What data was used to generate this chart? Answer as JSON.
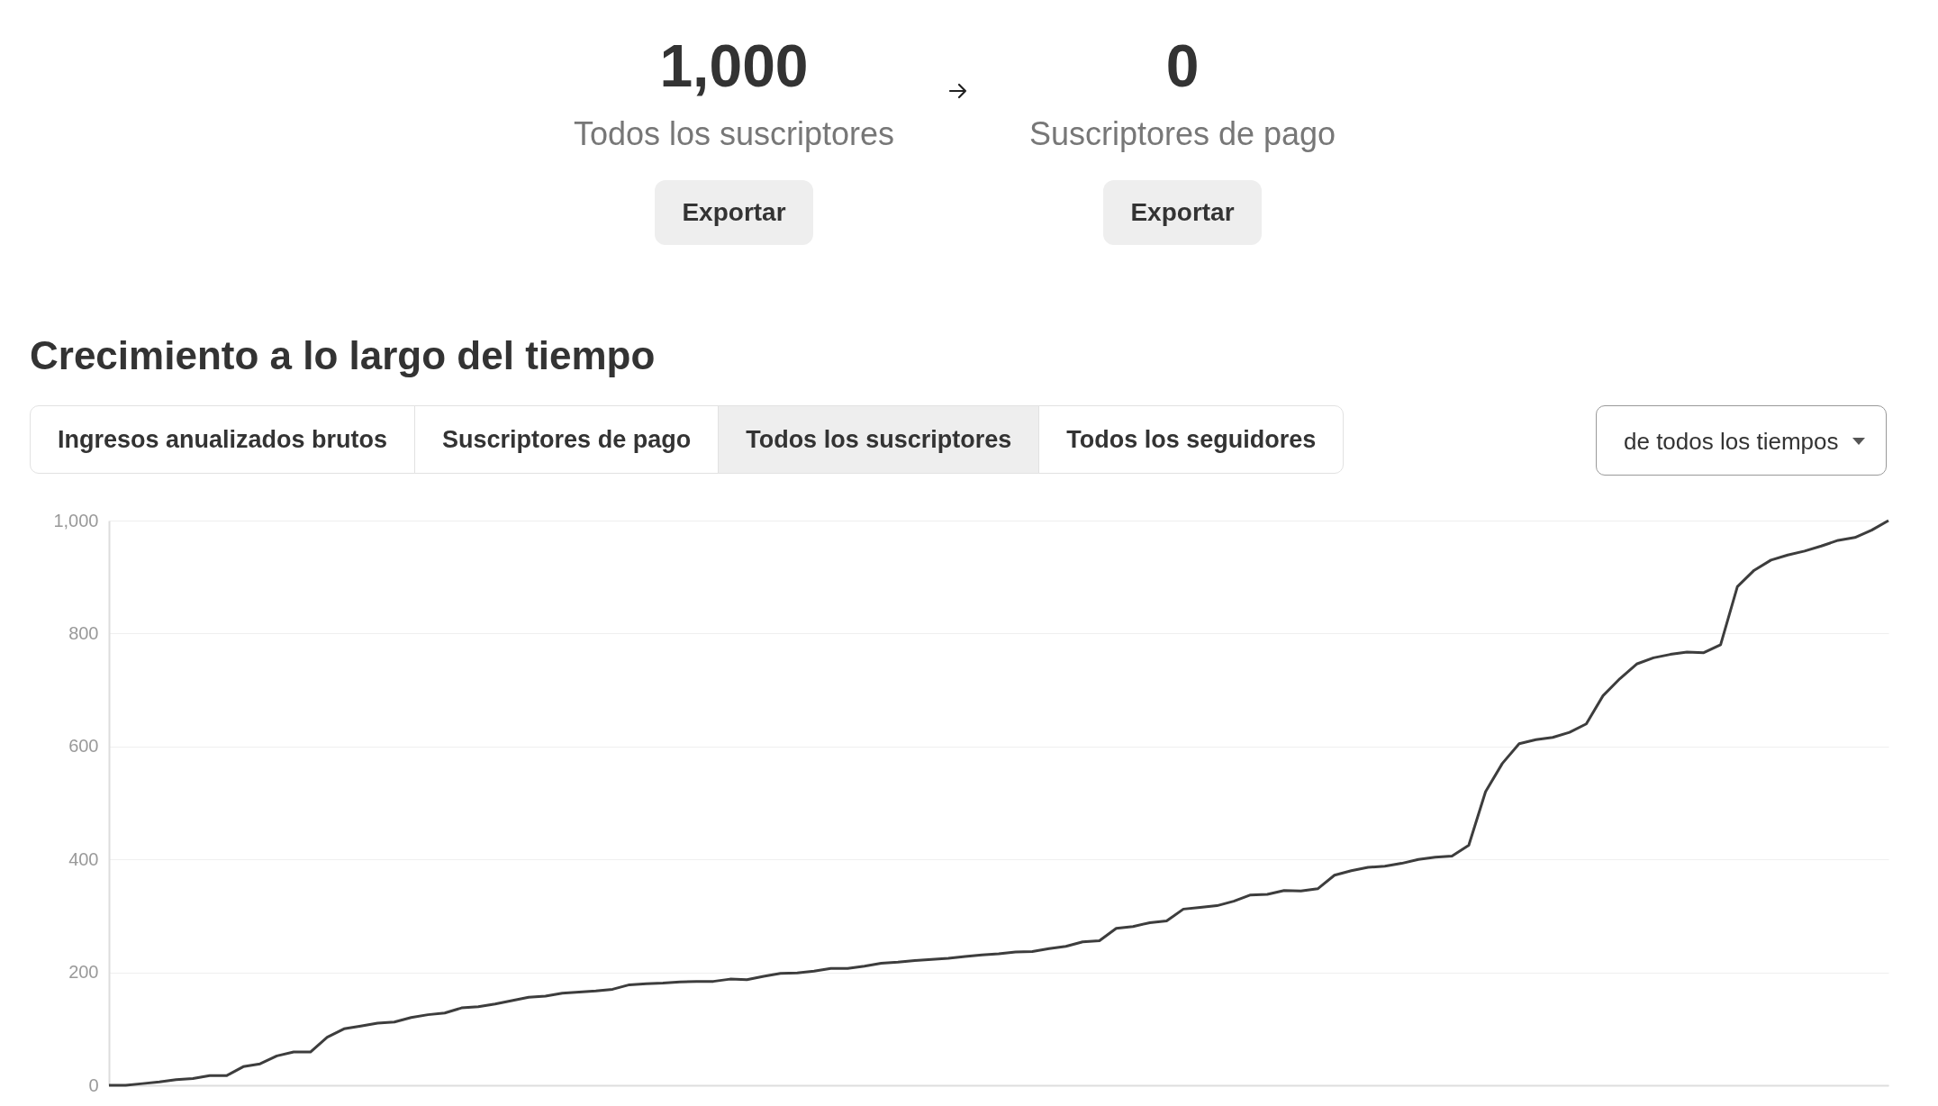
{
  "chart_data": {
    "type": "line",
    "title": "Crecimiento a lo largo del tiempo",
    "annotations": [
      "1,000",
      "Todos los suscriptores",
      "Exportar",
      "0",
      "Suscriptores de pago",
      "Exportar",
      "Ingresos anualizados brutos",
      "Suscriptores de pago",
      "Todos los suscriptores",
      "Todos los seguidores",
      "de todos los tiempos"
    ],
    "categories": [
      null,
      null,
      null,
      null,
      null,
      null,
      null,
      null,
      null,
      null,
      null,
      null,
      null,
      null,
      null,
      null,
      null,
      null,
      null,
      null,
      null,
      null,
      null,
      null,
      null,
      null,
      null,
      null,
      null,
      null,
      null,
      null,
      null,
      null,
      null,
      null,
      null,
      null,
      null,
      null,
      null,
      null,
      null,
      null,
      null,
      null,
      null,
      null,
      null,
      null,
      null,
      null,
      null,
      null,
      null,
      null,
      null,
      null,
      null,
      null,
      null,
      null,
      null,
      null,
      null,
      null,
      null,
      null,
      null,
      null,
      null,
      null,
      null,
      null,
      null,
      null,
      null,
      null,
      null,
      null,
      null,
      null,
      null,
      null,
      null,
      null,
      null,
      null,
      null,
      null,
      null,
      null,
      null,
      null,
      null,
      null,
      null,
      null,
      null,
      null,
      null,
      null,
      null,
      null,
      null,
      null,
      null
    ],
    "series": [
      {
        "color": "#3d3d3d",
        "values": [
          0,
          0,
          3,
          6,
          10,
          12,
          17,
          17,
          33,
          38,
          52,
          59,
          59,
          85,
          100,
          105,
          110,
          112,
          120,
          125,
          128,
          137,
          139,
          144,
          150,
          156,
          158,
          163,
          165,
          167,
          170,
          178,
          180,
          181,
          183,
          184,
          184,
          188,
          187,
          193,
          198,
          199,
          202,
          207,
          207,
          211,
          216,
          218,
          221,
          223,
          225,
          228,
          231,
          233,
          236,
          237,
          242,
          246,
          254,
          256,
          278,
          281,
          288,
          291,
          312,
          315,
          318,
          326,
          337,
          338,
          345,
          344,
          348,
          372,
          380,
          386,
          388,
          393,
          400,
          404,
          406,
          425,
          520,
          570,
          605,
          612,
          616,
          625,
          640,
          690,
          720,
          746,
          757,
          763,
          767,
          766,
          780,
          883,
          912,
          930,
          939,
          946,
          955,
          965,
          970,
          983,
          1000
        ]
      }
    ],
    "ylim": [
      0,
      1000
    ],
    "yticks": [
      0,
      200,
      400,
      600,
      800,
      {
        "value": 1000,
        "label": "1,000"
      }
    ],
    "grid": "y",
    "tick_labels": "y",
    "line_style": "solid",
    "marker": "none"
  }
}
